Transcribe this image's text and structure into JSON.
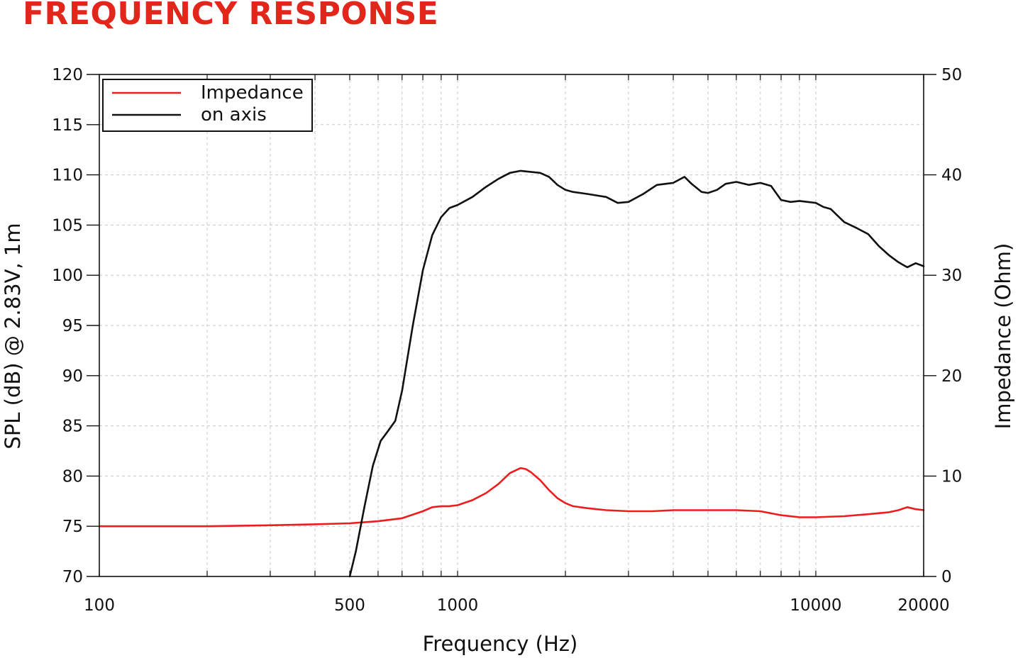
{
  "colors": {
    "title": "#e3261b",
    "impedance": "#ee1c1c",
    "spl": "#111111",
    "grid": "#c8c8c8"
  },
  "chart_data": {
    "type": "line",
    "title": "FREQUENCY RESPONSE",
    "xlabel": "Frequency (Hz)",
    "ylabel": "SPL (dB) @ 2.83V, 1m",
    "y2label": "Impedance (Ohm)",
    "x_scale": "log",
    "xlim": [
      100,
      20000
    ],
    "ylim": [
      70,
      120
    ],
    "y2lim": [
      0,
      50
    ],
    "x_ticks": [
      100,
      500,
      1000,
      10000,
      20000
    ],
    "y_ticks": [
      70,
      75,
      80,
      85,
      90,
      95,
      100,
      105,
      110,
      115,
      120
    ],
    "y2_ticks": [
      0,
      10,
      20,
      30,
      40,
      50
    ],
    "grid": true,
    "legend_position": "top-left",
    "series": [
      {
        "name": "Impedance",
        "axis": "right",
        "color": "#ee1c1c",
        "x": [
          100,
          200,
          300,
          400,
          500,
          600,
          700,
          800,
          850,
          900,
          950,
          1000,
          1100,
          1200,
          1300,
          1400,
          1500,
          1550,
          1600,
          1700,
          1800,
          1900,
          2000,
          2100,
          2300,
          2600,
          3000,
          3500,
          4000,
          4500,
          5000,
          5500,
          6000,
          7000,
          8000,
          9000,
          10000,
          12000,
          14000,
          16000,
          17000,
          18000,
          19000,
          20000
        ],
        "y": [
          5.0,
          5.0,
          5.1,
          5.2,
          5.3,
          5.5,
          5.8,
          6.5,
          6.9,
          7.0,
          7.0,
          7.1,
          7.6,
          8.3,
          9.2,
          10.3,
          10.8,
          10.7,
          10.4,
          9.6,
          8.6,
          7.8,
          7.3,
          7.0,
          6.8,
          6.6,
          6.5,
          6.5,
          6.6,
          6.6,
          6.6,
          6.6,
          6.6,
          6.5,
          6.1,
          5.9,
          5.9,
          6.0,
          6.2,
          6.4,
          6.6,
          6.9,
          6.7,
          6.6
        ]
      },
      {
        "name": "on axis",
        "axis": "left",
        "color": "#111111",
        "x": [
          500,
          520,
          550,
          580,
          610,
          640,
          670,
          700,
          750,
          800,
          850,
          900,
          950,
          1000,
          1100,
          1200,
          1300,
          1400,
          1500,
          1600,
          1700,
          1800,
          1900,
          2000,
          2100,
          2300,
          2600,
          2800,
          3000,
          3300,
          3600,
          4000,
          4300,
          4500,
          4800,
          5000,
          5300,
          5600,
          6000,
          6500,
          7000,
          7500,
          8000,
          8500,
          9000,
          9500,
          10000,
          10500,
          11000,
          12000,
          13000,
          14000,
          15000,
          16000,
          17000,
          18000,
          19000,
          20000
        ],
        "y": [
          70.0,
          72.5,
          77.0,
          81.0,
          83.5,
          84.5,
          85.5,
          88.5,
          95.0,
          100.5,
          104.0,
          105.8,
          106.7,
          107.0,
          107.8,
          108.8,
          109.6,
          110.2,
          110.4,
          110.3,
          110.2,
          109.8,
          109.0,
          108.5,
          108.3,
          108.1,
          107.8,
          107.2,
          107.3,
          108.1,
          109.0,
          109.2,
          109.8,
          109.1,
          108.3,
          108.2,
          108.5,
          109.1,
          109.3,
          109.0,
          109.2,
          108.9,
          107.5,
          107.3,
          107.4,
          107.3,
          107.2,
          106.8,
          106.6,
          105.3,
          104.7,
          104.1,
          102.9,
          102.0,
          101.3,
          100.8,
          101.2,
          100.9
        ]
      }
    ]
  }
}
